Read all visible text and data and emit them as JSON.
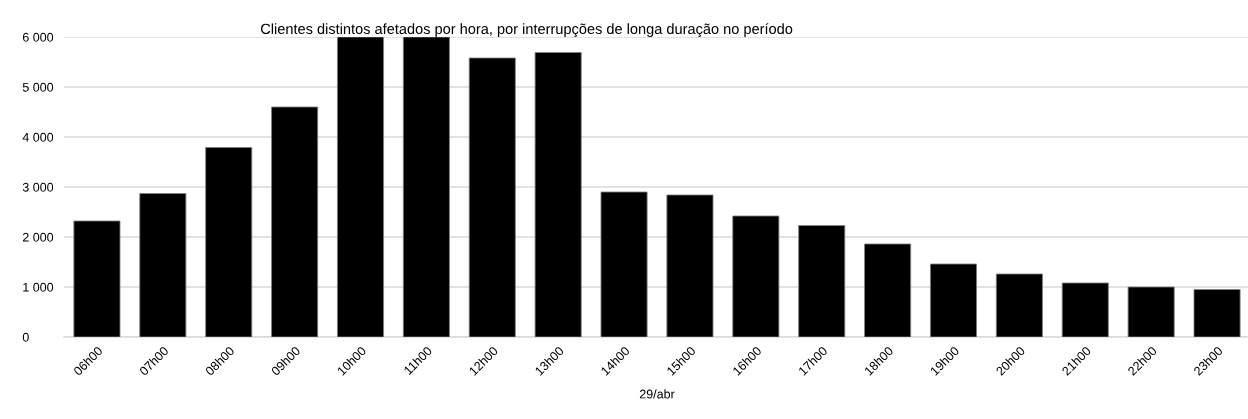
{
  "chart_data": {
    "type": "bar",
    "title": "Clientes distintos afetados por hora, por interrupções de longa duração no período",
    "xlabel": "29/abr",
    "categories": [
      "06h00",
      "07h00",
      "08h00",
      "09h00",
      "10h00",
      "11h00",
      "12h00",
      "13h00",
      "14h00",
      "15h00",
      "16h00",
      "17h00",
      "18h00",
      "19h00",
      "20h00",
      "21h00",
      "22h00",
      "23h00"
    ],
    "values": [
      2320,
      2870,
      3790,
      4600,
      6000,
      6000,
      5580,
      5690,
      2900,
      2840,
      2420,
      2230,
      1860,
      1460,
      1260,
      1080,
      1000,
      950
    ],
    "color": "#000000",
    "ylim": [
      0,
      6000
    ],
    "yticks": [
      {
        "value": 0,
        "label": "0"
      },
      {
        "value": 1000,
        "label": "1 000"
      },
      {
        "value": 2000,
        "label": "2 000"
      },
      {
        "value": 3000,
        "label": "3 000"
      },
      {
        "value": 4000,
        "label": "4 000"
      },
      {
        "value": 5000,
        "label": "5 000"
      },
      {
        "value": 6000,
        "label": "6 000"
      }
    ],
    "grid": "y",
    "legend": false
  }
}
